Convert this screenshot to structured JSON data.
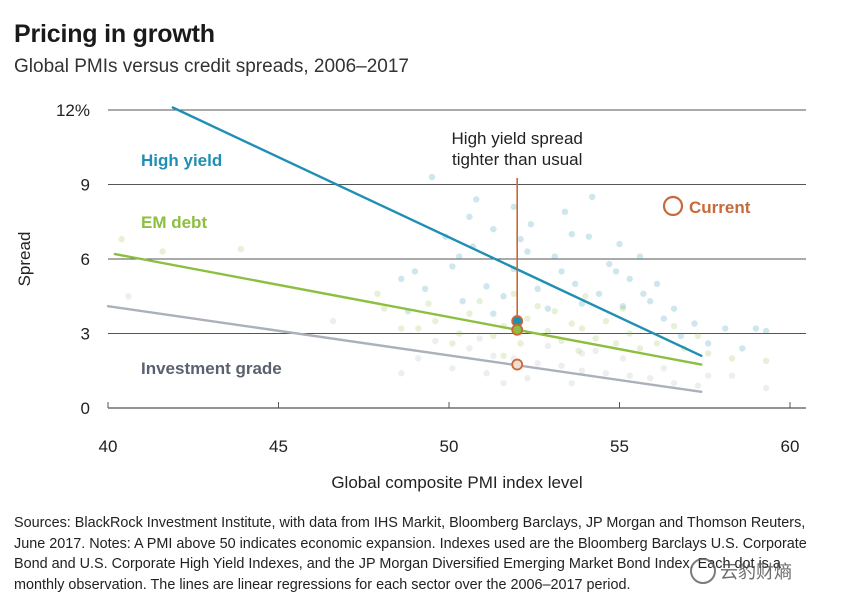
{
  "title": "Pricing in growth",
  "subtitle": "Global PMIs versus credit spreads, 2006–2017",
  "sources": "Sources: BlackRock Investment Institute, with data from IHS Markit, Bloomberg Barclays, JP Morgan and Thomson Reuters, June 2017. Notes: A PMI above 50 indicates economic expansion. Indexes used are the Bloomberg Barclays U.S. Corporate Bond and U.S. Corporate High Yield Indexes, and the JP Morgan Diversified Emerging Market Bond Index. Each dot is a monthly observation. The lines are linear regressions for each sector over the 2006–2017 period.",
  "watermark": "云豹财熵",
  "colors": {
    "high_yield": "#1f8fb3",
    "em_debt": "#8cbf3f",
    "investment_grade": "#aab1ba",
    "current": "#c8693a",
    "grid": "#555555"
  },
  "chart_data": {
    "type": "scatter",
    "title": "Pricing in growth",
    "xlabel": "Global composite PMI index level",
    "ylabel": "Spread",
    "xlim": [
      40,
      60
    ],
    "ylim": [
      0,
      12
    ],
    "x_ticks": [
      "40",
      "45",
      "50",
      "55",
      "60"
    ],
    "y_ticks": [
      "0",
      "3",
      "6",
      "9",
      "12%"
    ],
    "annotation": "High yield spread tighter than usual",
    "legend_current": "Current",
    "series": [
      {
        "name": "High yield",
        "key": "high_yield",
        "regression": {
          "x": [
            41.9,
            57.4
          ],
          "y": [
            12.1,
            2.1
          ]
        },
        "current": {
          "x": 52.0,
          "y": 3.5
        },
        "points": [
          [
            49.5,
            9.3
          ],
          [
            50.8,
            8.4
          ],
          [
            51.3,
            7.2
          ],
          [
            52.1,
            6.8
          ],
          [
            53.4,
            7.9
          ],
          [
            54.2,
            8.5
          ],
          [
            55.0,
            6.6
          ],
          [
            55.6,
            6.1
          ],
          [
            56.1,
            5.0
          ],
          [
            53.1,
            6.1
          ],
          [
            51.9,
            5.6
          ],
          [
            50.7,
            6.5
          ],
          [
            49.0,
            5.5
          ],
          [
            48.6,
            5.2
          ],
          [
            54.7,
            5.8
          ],
          [
            55.9,
            4.3
          ],
          [
            56.6,
            4.0
          ],
          [
            57.2,
            3.4
          ],
          [
            58.1,
            3.2
          ],
          [
            59.0,
            3.2
          ],
          [
            53.7,
            5.0
          ],
          [
            52.6,
            4.8
          ],
          [
            51.6,
            4.5
          ],
          [
            50.4,
            4.3
          ],
          [
            54.4,
            4.6
          ],
          [
            55.1,
            4.1
          ],
          [
            53.9,
            4.2
          ],
          [
            52.9,
            4.0
          ],
          [
            51.3,
            3.8
          ],
          [
            49.3,
            4.8
          ],
          [
            50.1,
            5.7
          ],
          [
            54.1,
            6.9
          ],
          [
            55.3,
            5.2
          ],
          [
            56.3,
            3.6
          ],
          [
            57.6,
            2.6
          ],
          [
            58.6,
            2.4
          ],
          [
            59.3,
            3.1
          ],
          [
            52.3,
            6.3
          ],
          [
            53.3,
            5.5
          ],
          [
            51.1,
            4.9
          ],
          [
            50.6,
            7.7
          ],
          [
            49.9,
            6.9
          ],
          [
            52.4,
            7.4
          ],
          [
            53.6,
            7.0
          ],
          [
            54.9,
            5.5
          ],
          [
            48.8,
            3.9
          ],
          [
            51.9,
            8.1
          ],
          [
            50.3,
            6.1
          ],
          [
            56.8,
            2.9
          ],
          [
            55.7,
            4.6
          ]
        ]
      },
      {
        "name": "EM debt",
        "key": "em_debt",
        "regression": {
          "x": [
            40.2,
            57.4
          ],
          "y": [
            6.2,
            1.75
          ]
        },
        "current": {
          "x": 52.0,
          "y": 3.15
        },
        "points": [
          [
            40.4,
            6.8
          ],
          [
            41.6,
            6.3
          ],
          [
            43.9,
            6.4
          ],
          [
            48.1,
            4.0
          ],
          [
            49.6,
            3.5
          ],
          [
            50.6,
            3.8
          ],
          [
            51.6,
            3.3
          ],
          [
            52.3,
            3.6
          ],
          [
            53.1,
            3.9
          ],
          [
            53.9,
            3.2
          ],
          [
            54.6,
            3.5
          ],
          [
            55.3,
            3.0
          ],
          [
            56.1,
            2.6
          ],
          [
            56.9,
            2.4
          ],
          [
            57.6,
            2.2
          ],
          [
            58.3,
            2.0
          ],
          [
            59.3,
            1.9
          ],
          [
            50.9,
            4.3
          ],
          [
            51.9,
            4.6
          ],
          [
            52.6,
            4.1
          ],
          [
            53.6,
            3.4
          ],
          [
            54.3,
            2.8
          ],
          [
            49.1,
            3.2
          ],
          [
            50.3,
            3.0
          ],
          [
            51.3,
            2.9
          ],
          [
            52.9,
            3.1
          ],
          [
            53.3,
            2.7
          ],
          [
            54.9,
            2.6
          ],
          [
            55.6,
            2.4
          ],
          [
            48.6,
            3.2
          ],
          [
            47.9,
            4.6
          ],
          [
            56.6,
            3.3
          ],
          [
            57.3,
            2.9
          ],
          [
            55.1,
            4.0
          ],
          [
            52.1,
            2.6
          ],
          [
            50.1,
            2.6
          ],
          [
            51.6,
            2.1
          ],
          [
            53.8,
            2.3
          ],
          [
            49.4,
            4.2
          ],
          [
            54.0,
            4.5
          ]
        ]
      },
      {
        "name": "Investment grade",
        "key": "investment_grade",
        "regression": {
          "x": [
            40.0,
            57.4
          ],
          "y": [
            4.1,
            0.65
          ]
        },
        "current": {
          "x": 52.0,
          "y": 1.75
        },
        "points": [
          [
            40.6,
            4.5
          ],
          [
            46.6,
            3.5
          ],
          [
            49.6,
            2.7
          ],
          [
            50.6,
            2.4
          ],
          [
            51.3,
            2.1
          ],
          [
            51.9,
            2.0
          ],
          [
            52.6,
            1.8
          ],
          [
            53.3,
            1.7
          ],
          [
            53.9,
            1.5
          ],
          [
            54.6,
            1.4
          ],
          [
            55.3,
            1.3
          ],
          [
            55.9,
            1.2
          ],
          [
            56.6,
            1.0
          ],
          [
            57.3,
            0.9
          ],
          [
            58.3,
            1.3
          ],
          [
            59.3,
            0.8
          ],
          [
            50.1,
            1.6
          ],
          [
            51.1,
            1.4
          ],
          [
            52.3,
            1.2
          ],
          [
            53.6,
            1.0
          ],
          [
            54.3,
            2.3
          ],
          [
            55.1,
            2.0
          ],
          [
            49.1,
            2.0
          ],
          [
            50.9,
            2.8
          ],
          [
            52.9,
            2.5
          ],
          [
            53.9,
            2.2
          ],
          [
            56.3,
            1.6
          ],
          [
            57.6,
            1.3
          ],
          [
            48.6,
            1.4
          ],
          [
            51.6,
            1.0
          ]
        ]
      }
    ]
  }
}
